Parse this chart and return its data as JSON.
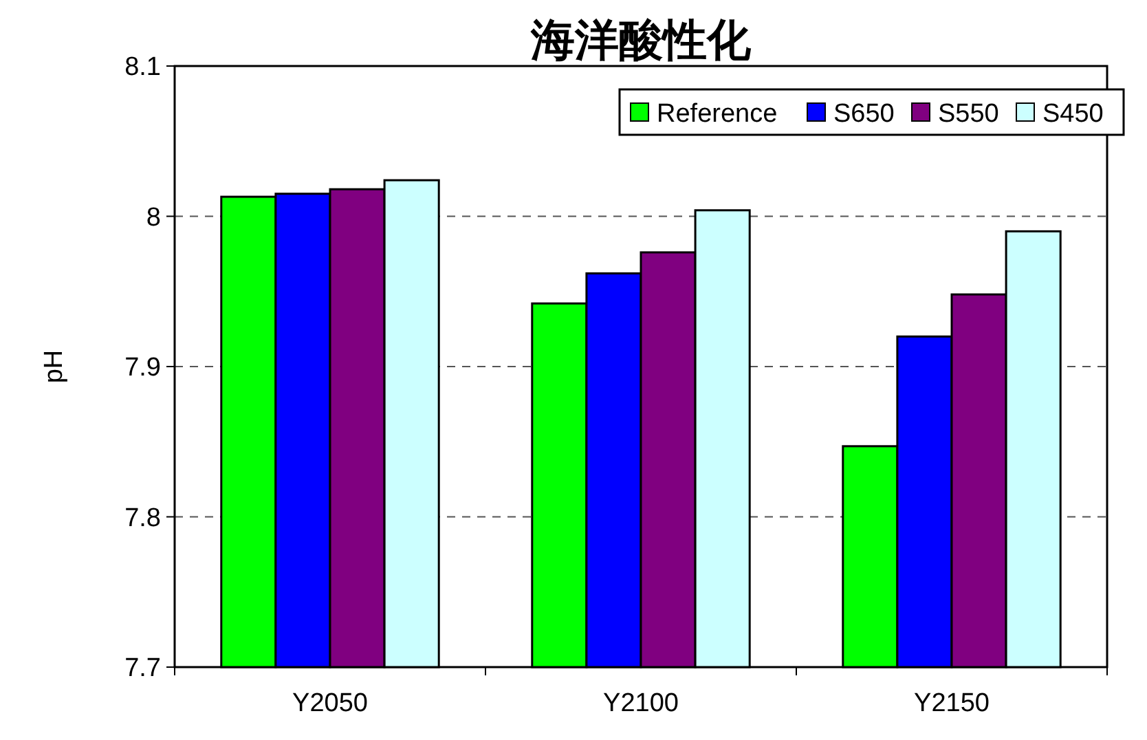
{
  "chart_data": {
    "type": "bar",
    "title": "海洋酸性化",
    "ylabel": "pH",
    "categories": [
      "Y2050",
      "Y2100",
      "Y2150"
    ],
    "series": [
      {
        "name": "Reference",
        "color": "#00ff00",
        "values": [
          8.013,
          7.942,
          7.847
        ]
      },
      {
        "name": "S650",
        "color": "#0000ff",
        "values": [
          8.015,
          7.962,
          7.92
        ]
      },
      {
        "name": "S550",
        "color": "#800080",
        "values": [
          8.018,
          7.976,
          7.948
        ]
      },
      {
        "name": "S450",
        "color": "#ccffff",
        "values": [
          8.024,
          8.004,
          7.99
        ]
      }
    ],
    "ylim": [
      7.7,
      8.1
    ],
    "yticks": [
      {
        "value": 7.7,
        "label": "7.7"
      },
      {
        "value": 7.8,
        "label": "7.8"
      },
      {
        "value": 7.9,
        "label": "7.9"
      },
      {
        "value": 8.0,
        "label": "8"
      },
      {
        "value": 8.1,
        "label": "8.1"
      }
    ],
    "grid": "y",
    "legend": "top right"
  }
}
